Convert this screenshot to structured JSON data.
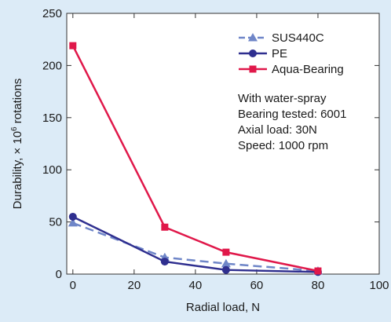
{
  "chart_data": {
    "type": "line",
    "xlabel": "Radial load, N",
    "ylabel_main": "Durability, × 10",
    "ylabel_sup": "6",
    "ylabel_tail": " rotations",
    "xlim": [
      -2,
      100
    ],
    "ylim": [
      0,
      250
    ],
    "x_ticks": [
      0,
      20,
      40,
      60,
      80,
      100
    ],
    "y_ticks": [
      0,
      50,
      100,
      150,
      200,
      250
    ],
    "grid": false,
    "legend_placement": "top-right",
    "series": [
      {
        "name": "SUS440C",
        "color": "#6f86c8",
        "dash": "dashed",
        "marker": "triangle",
        "x": [
          0,
          30,
          50,
          80
        ],
        "y": [
          49,
          16,
          10,
          3
        ]
      },
      {
        "name": "PE",
        "color": "#2f2f8f",
        "dash": "solid",
        "marker": "circle",
        "x": [
          0,
          30,
          50,
          80
        ],
        "y": [
          55,
          12,
          4,
          2
        ]
      },
      {
        "name": "Aqua-Bearing",
        "color": "#e0184a",
        "dash": "solid",
        "marker": "square",
        "x": [
          0,
          30,
          50,
          80
        ],
        "y": [
          219,
          45,
          21,
          3
        ]
      }
    ],
    "annotations": [
      "With water-spray",
      "Bearing tested: 6001",
      "Axial load: 30N",
      "Speed: 1000 rpm"
    ]
  }
}
